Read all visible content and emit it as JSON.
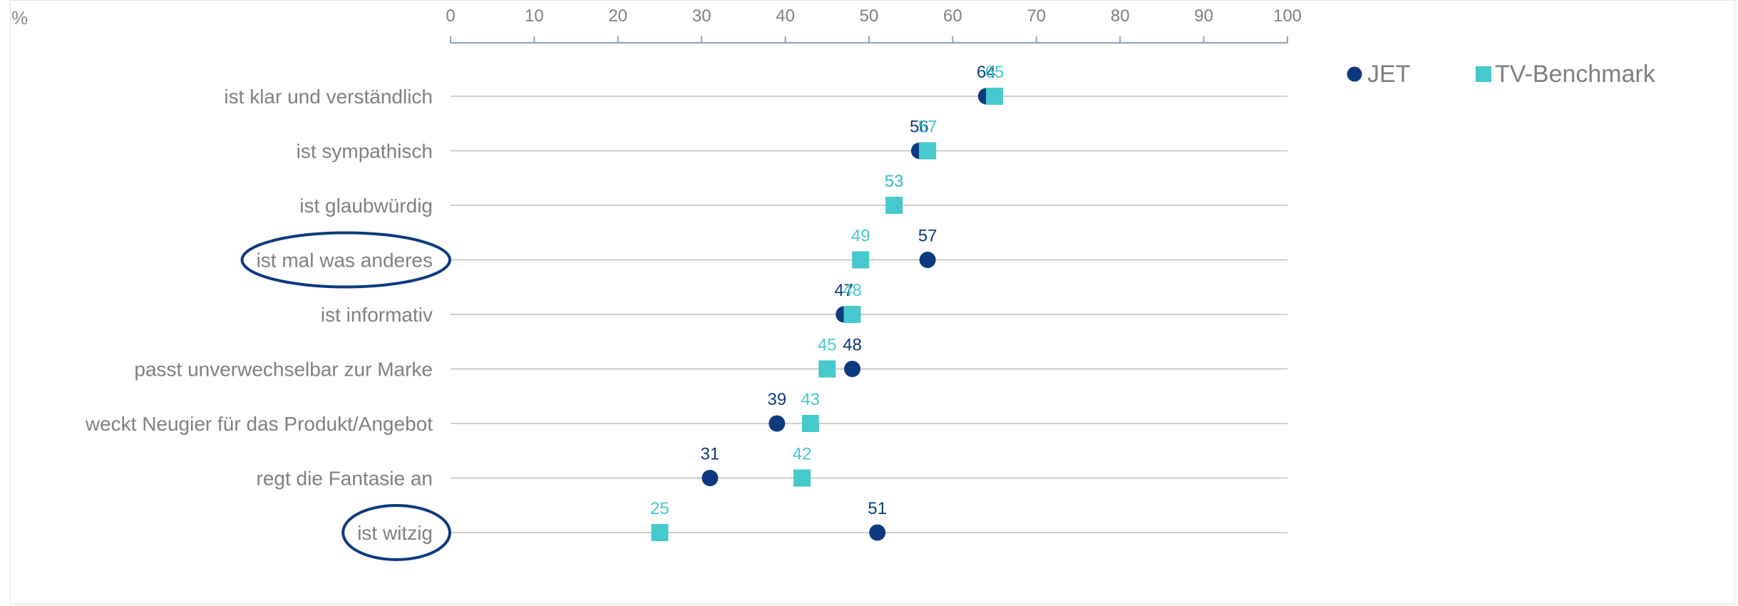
{
  "chart_data": {
    "type": "scatter",
    "unit_label": "%",
    "categories": [
      "ist klar und verständlich",
      "ist sympathisch",
      "ist glaubwürdig",
      "ist mal was anderes",
      "ist informativ",
      "passt unverwechselbar zur Marke",
      "weckt Neugier für das Produkt/Angebot",
      "regt die Fantasie an",
      "ist witzig"
    ],
    "x_ticks": [
      0,
      10,
      20,
      30,
      40,
      50,
      60,
      70,
      80,
      90,
      100
    ],
    "xlim": [
      0,
      100
    ],
    "series": [
      {
        "name": "JET",
        "marker": "circle",
        "color": "#0d3a7e",
        "values": [
          64,
          56,
          53,
          57,
          47,
          48,
          39,
          31,
          51
        ]
      },
      {
        "name": "TV-Benchmark",
        "marker": "square",
        "color": "#45c9cc",
        "values": [
          65,
          57,
          53,
          49,
          48,
          45,
          43,
          42,
          25
        ]
      }
    ],
    "highlighted_categories": [
      "ist mal was anderes",
      "ist witzig"
    ],
    "highlight_color": "#0d3a7e",
    "legend_position": "top-right",
    "grid": "horizontal lines per category"
  }
}
